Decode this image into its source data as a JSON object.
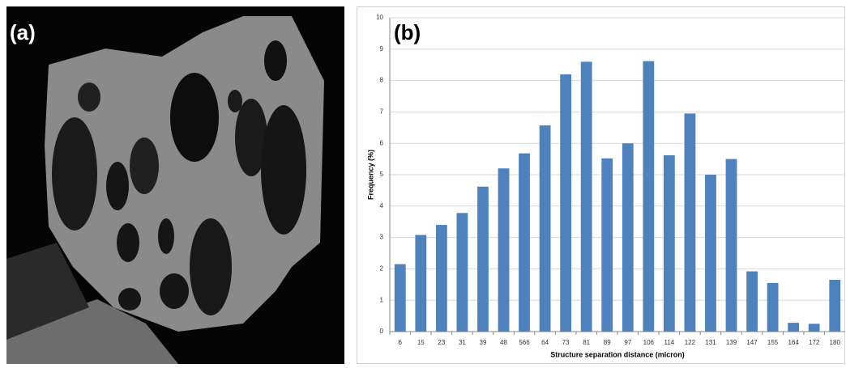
{
  "panel_a": {
    "label": "(a)"
  },
  "chart_data": {
    "type": "bar",
    "panel_label": "(b)",
    "xlabel": "Structure separation distance (micron)",
    "ylabel": "Frequency (%)",
    "categories": [
      "6",
      "15",
      "23",
      "31",
      "39",
      "48",
      "566",
      "64",
      "73",
      "81",
      "89",
      "97",
      "106",
      "114",
      "122",
      "131",
      "139",
      "147",
      "155",
      "164",
      "172",
      "180"
    ],
    "values": [
      2.15,
      3.08,
      3.4,
      3.78,
      4.62,
      5.2,
      5.68,
      6.57,
      8.2,
      8.6,
      5.52,
      6.0,
      8.62,
      5.62,
      6.95,
      5.0,
      5.5,
      1.92,
      1.55,
      0.28,
      0.25,
      1.65
    ],
    "color": "#4f81bd",
    "ylim": [
      0,
      10
    ],
    "yticks": [
      0,
      1,
      2,
      3,
      4,
      5,
      6,
      7,
      8,
      9,
      10
    ],
    "grid": true
  }
}
